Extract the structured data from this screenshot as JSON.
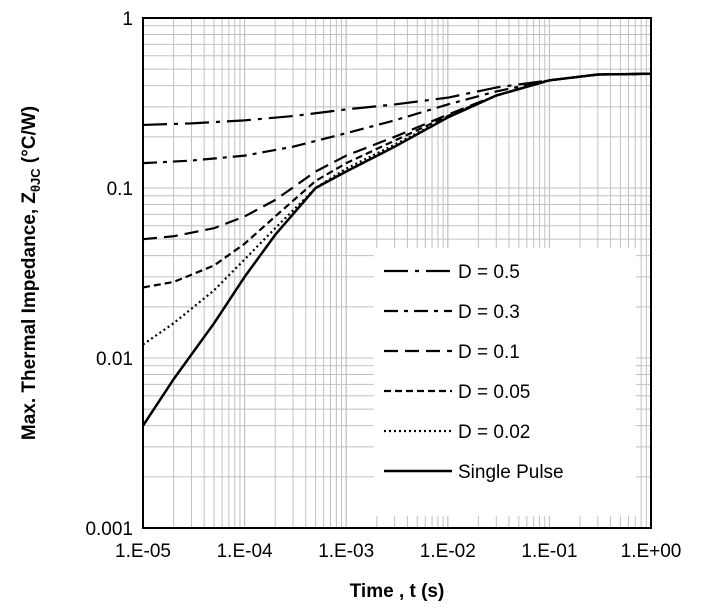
{
  "chart_data": {
    "type": "line",
    "xlabel": "Time , t (s)",
    "ylabel_main": "Max. Thermal Impedance, Z",
    "ylabel_sub": "θJC",
    "ylabel_unit": " (°C/W)",
    "x_scale": "log",
    "y_scale": "log",
    "xlim": [
      1e-05,
      1
    ],
    "ylim": [
      0.001,
      1
    ],
    "grid": true,
    "legend_position": "bottom-right",
    "xtick_labels": [
      "1.E-05",
      "1.E-04",
      "1.E-03",
      "1.E-02",
      "1.E-01",
      "1.E+00"
    ],
    "ytick_labels": [
      "0.001",
      "0.01",
      "0.1",
      "1"
    ],
    "series": [
      {
        "name": "D = 0.5",
        "dash": "dash-dot-long",
        "points": [
          [
            1e-05,
            0.235
          ],
          [
            3e-05,
            0.24
          ],
          [
            0.0001,
            0.25
          ],
          [
            0.0003,
            0.265
          ],
          [
            0.001,
            0.29
          ],
          [
            0.003,
            0.31
          ],
          [
            0.01,
            0.34
          ],
          [
            0.03,
            0.39
          ],
          [
            0.1,
            0.43
          ],
          [
            0.3,
            0.465
          ],
          [
            1,
            0.47
          ]
        ]
      },
      {
        "name": "D = 0.3",
        "dash": "dash-dot",
        "points": [
          [
            1e-05,
            0.14
          ],
          [
            3e-05,
            0.145
          ],
          [
            0.0001,
            0.155
          ],
          [
            0.0003,
            0.175
          ],
          [
            0.001,
            0.21
          ],
          [
            0.003,
            0.25
          ],
          [
            0.01,
            0.31
          ],
          [
            0.03,
            0.37
          ],
          [
            0.1,
            0.43
          ],
          [
            0.3,
            0.465
          ],
          [
            1,
            0.47
          ]
        ]
      },
      {
        "name": "D = 0.1",
        "dash": "long-dash",
        "points": [
          [
            1e-05,
            0.05
          ],
          [
            2e-05,
            0.052
          ],
          [
            5e-05,
            0.058
          ],
          [
            0.0001,
            0.068
          ],
          [
            0.0002,
            0.085
          ],
          [
            0.0005,
            0.125
          ],
          [
            0.001,
            0.155
          ],
          [
            0.003,
            0.2
          ],
          [
            0.01,
            0.27
          ],
          [
            0.03,
            0.35
          ],
          [
            0.1,
            0.43
          ],
          [
            0.3,
            0.465
          ],
          [
            1,
            0.47
          ]
        ]
      },
      {
        "name": "D = 0.05",
        "dash": "short-dash",
        "points": [
          [
            1e-05,
            0.026
          ],
          [
            2e-05,
            0.028
          ],
          [
            5e-05,
            0.035
          ],
          [
            0.0001,
            0.047
          ],
          [
            0.0002,
            0.068
          ],
          [
            0.0005,
            0.11
          ],
          [
            0.001,
            0.14
          ],
          [
            0.003,
            0.19
          ],
          [
            0.01,
            0.265
          ],
          [
            0.03,
            0.35
          ],
          [
            0.1,
            0.43
          ],
          [
            0.3,
            0.465
          ],
          [
            1,
            0.47
          ]
        ]
      },
      {
        "name": "D = 0.02",
        "dash": "dotted",
        "points": [
          [
            1e-05,
            0.012
          ],
          [
            2e-05,
            0.016
          ],
          [
            5e-05,
            0.025
          ],
          [
            0.0001,
            0.038
          ],
          [
            0.0002,
            0.058
          ],
          [
            0.0005,
            0.1
          ],
          [
            0.001,
            0.13
          ],
          [
            0.003,
            0.18
          ],
          [
            0.01,
            0.26
          ],
          [
            0.03,
            0.35
          ],
          [
            0.1,
            0.43
          ],
          [
            0.3,
            0.465
          ],
          [
            1,
            0.47
          ]
        ]
      },
      {
        "name": "Single Pulse",
        "dash": "solid",
        "points": [
          [
            1e-05,
            0.004
          ],
          [
            2e-05,
            0.0075
          ],
          [
            5e-05,
            0.016
          ],
          [
            0.0001,
            0.03
          ],
          [
            0.0002,
            0.053
          ],
          [
            0.0005,
            0.1
          ],
          [
            0.001,
            0.125
          ],
          [
            0.003,
            0.175
          ],
          [
            0.01,
            0.26
          ],
          [
            0.03,
            0.35
          ],
          [
            0.1,
            0.43
          ],
          [
            0.3,
            0.465
          ],
          [
            1,
            0.47
          ]
        ]
      }
    ]
  }
}
